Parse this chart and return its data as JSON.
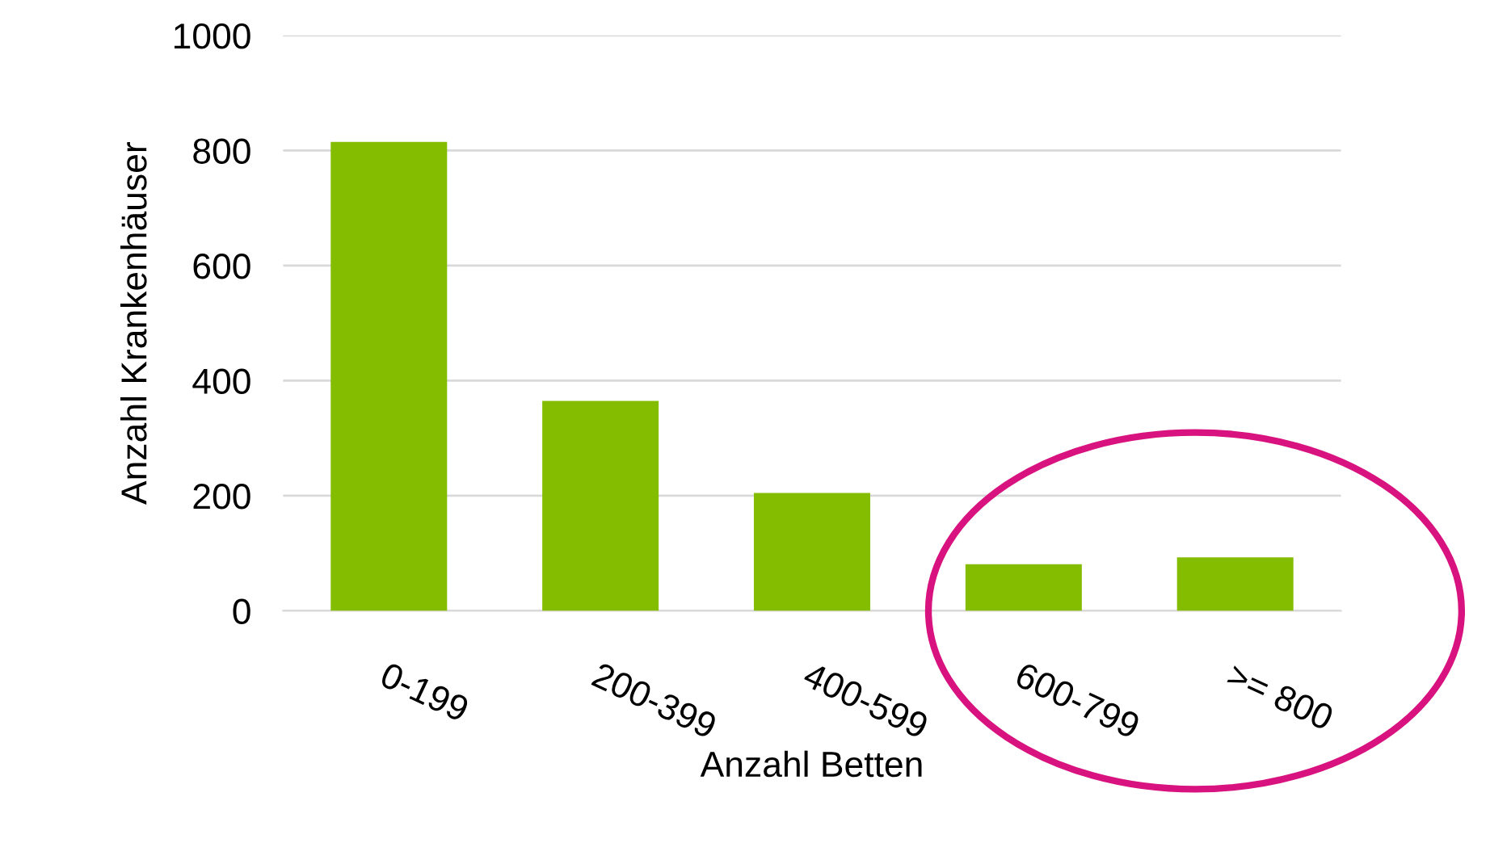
{
  "chart_data": {
    "type": "bar",
    "xlabel": "Anzahl Betten",
    "ylabel": "Anzahl Krankenhäuser",
    "categories": [
      "0-199",
      "200-399",
      "400-599",
      "600-799",
      ">= 800"
    ],
    "values": [
      815,
      365,
      205,
      81,
      93
    ],
    "color": "#84bd00",
    "ylim": [
      0,
      1000
    ],
    "yticks": [
      0,
      200,
      400,
      600,
      800,
      1000
    ],
    "grid": "y"
  }
}
